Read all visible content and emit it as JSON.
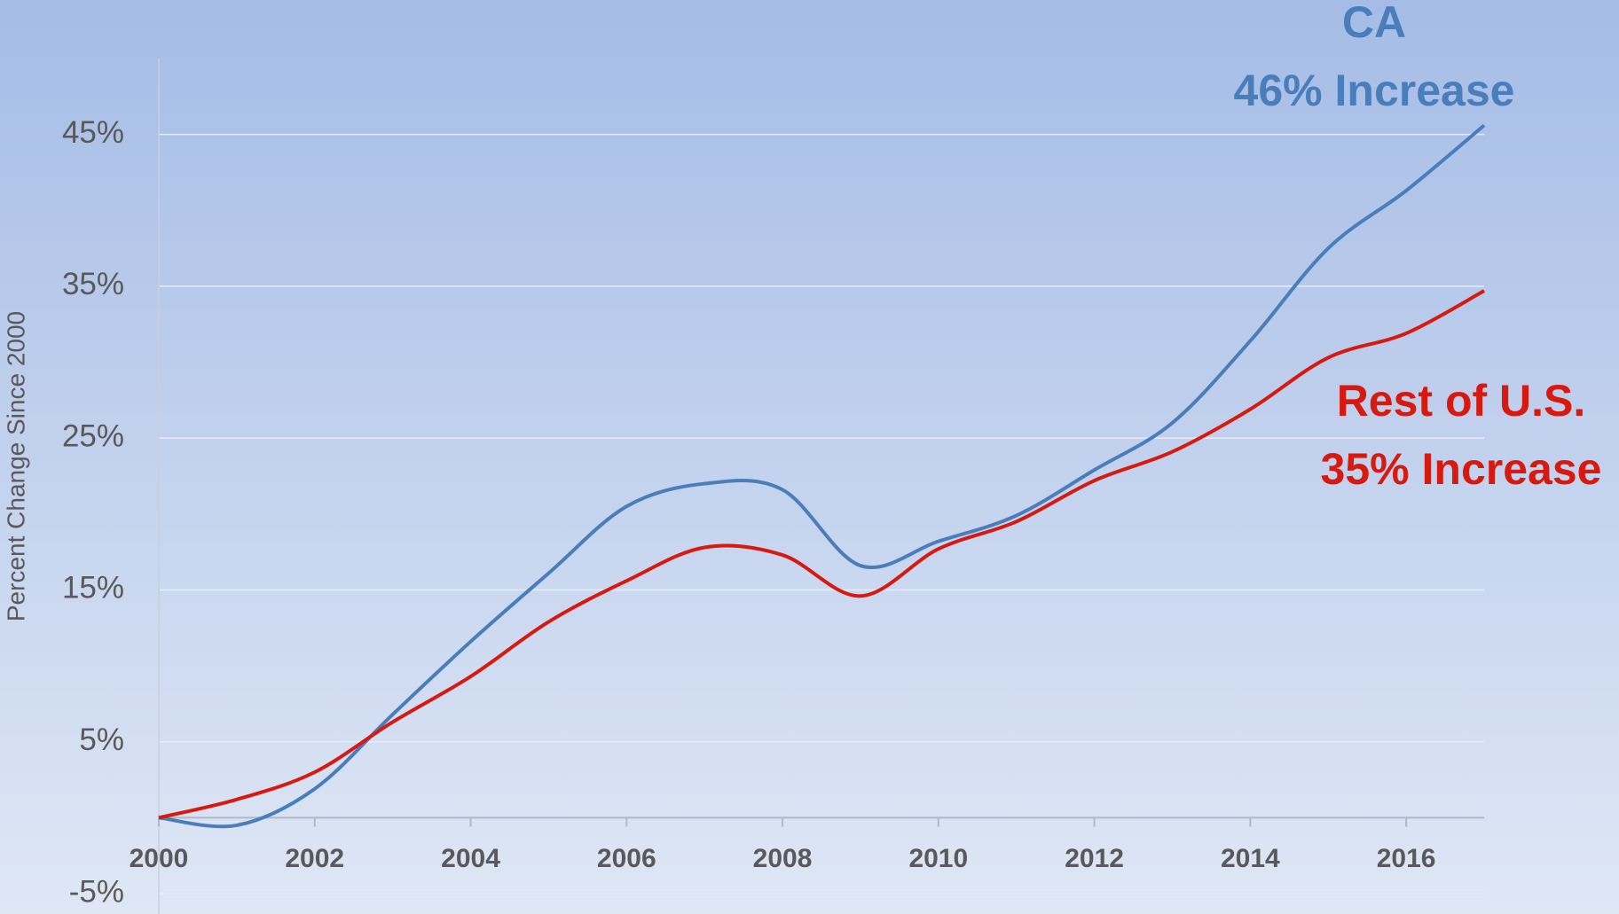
{
  "chart_data": {
    "type": "line",
    "y_axis_label": "Percent Change Since 2000",
    "x": [
      2000,
      2001,
      2002,
      2003,
      2004,
      2005,
      2006,
      2007,
      2008,
      2009,
      2010,
      2011,
      2012,
      2013,
      2014,
      2015,
      2016,
      2017
    ],
    "xlim": [
      2000,
      2017
    ],
    "xticks": [
      2000,
      2002,
      2004,
      2006,
      2008,
      2010,
      2012,
      2014,
      2016
    ],
    "ylim": [
      -5,
      50
    ],
    "yticks": [
      {
        "value": -5,
        "label": "-5%"
      },
      {
        "value": 5,
        "label": "5%"
      },
      {
        "value": 15,
        "label": "15%"
      },
      {
        "value": 25,
        "label": "25%"
      },
      {
        "value": 35,
        "label": "35%"
      },
      {
        "value": 45,
        "label": "45%"
      }
    ],
    "grid": true,
    "series": [
      {
        "name": "CA",
        "color": "#4a7ebb",
        "values": [
          0,
          -0.5,
          1.9,
          6.8,
          11.6,
          16.1,
          20.5,
          22.0,
          21.6,
          16.6,
          18.2,
          19.9,
          22.9,
          26.0,
          31.4,
          37.5,
          41.3,
          45.6
        ]
      },
      {
        "name": "Rest of U.S.",
        "color": "#d7190f",
        "values": [
          0,
          1.2,
          3.0,
          6.3,
          9.3,
          12.9,
          15.6,
          17.8,
          17.3,
          14.6,
          17.7,
          19.5,
          22.2,
          24.1,
          26.9,
          30.3,
          31.9,
          34.7
        ]
      }
    ],
    "annotations": [
      {
        "series": 0,
        "lines": [
          "CA",
          "46% Increase"
        ]
      },
      {
        "series": 1,
        "lines": [
          "Rest of U.S.",
          "35% Increase"
        ]
      }
    ]
  }
}
